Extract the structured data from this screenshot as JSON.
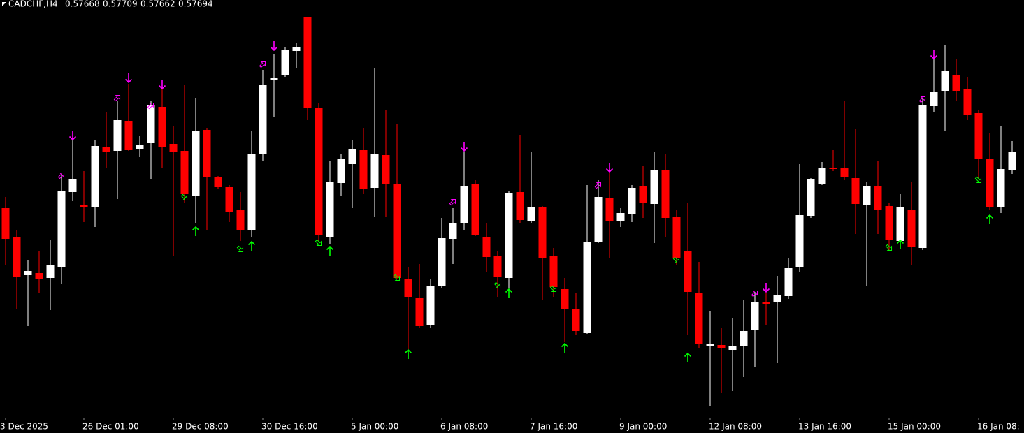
{
  "chart_data": {
    "type": "candlestick",
    "title": "CADCHF,H4",
    "bull_color": "#ffffff",
    "bear_color": "#ff0000",
    "axis_color": "#8c8c8c",
    "ylim": [
      0.57313,
      0.57911
    ],
    "categories": [
      "3 Dec 2025",
      null,
      null,
      null,
      null,
      null,
      null,
      "26 Dec 01:00",
      null,
      null,
      null,
      null,
      null,
      null,
      null,
      "29 Dec 08:00",
      null,
      null,
      null,
      null,
      null,
      null,
      null,
      "30 Dec 16:00",
      null,
      null,
      null,
      null,
      null,
      null,
      null,
      "5 Jan 00:00",
      null,
      null,
      null,
      null,
      null,
      null,
      null,
      "6 Jan 08:00",
      null,
      null,
      null,
      null,
      null,
      null,
      null,
      "7 Jan 16:00",
      null,
      null,
      null,
      null,
      null,
      null,
      null,
      "9 Jan 00:00",
      null,
      null,
      null,
      null,
      null,
      null,
      null,
      "12 Jan 08:00",
      null,
      null,
      null,
      null,
      null,
      null,
      null,
      "13 Jan 16:00",
      null,
      null,
      null,
      null,
      null,
      null,
      null,
      "15 Jan 00:00",
      null,
      null,
      null,
      null,
      null,
      null,
      null,
      "16 Jan 08:",
      null,
      null,
      null
    ],
    "ohlc": [
      [
        0.57613,
        0.57629,
        0.57531,
        0.57569
      ],
      [
        0.57571,
        0.57581,
        0.57468,
        0.57514
      ],
      [
        0.57517,
        0.57539,
        0.57444,
        0.57523
      ],
      [
        0.5752,
        0.57551,
        0.57491,
        0.57512
      ],
      [
        0.57513,
        0.57568,
        0.57467,
        0.57531
      ],
      [
        0.57528,
        0.57661,
        0.57504,
        0.57638
      ],
      [
        0.57636,
        0.57711,
        0.57623,
        0.57655
      ],
      [
        0.57618,
        0.57666,
        0.57593,
        0.57614
      ],
      [
        0.57614,
        0.57711,
        0.57586,
        0.57702
      ],
      [
        0.57701,
        0.57751,
        0.57671,
        0.57693
      ],
      [
        0.57695,
        0.57766,
        0.57626,
        0.57739
      ],
      [
        0.57738,
        0.57791,
        0.57695,
        0.57696
      ],
      [
        0.57697,
        0.57716,
        0.57686,
        0.57703
      ],
      [
        0.57706,
        0.57766,
        0.57655,
        0.57761
      ],
      [
        0.57758,
        0.57783,
        0.57671,
        0.57701
      ],
      [
        0.57705,
        0.57731,
        0.57544,
        0.57693
      ],
      [
        0.57695,
        0.57789,
        0.57621,
        0.57633
      ],
      [
        0.57631,
        0.57771,
        0.57591,
        0.57724
      ],
      [
        0.57725,
        0.57728,
        0.57581,
        0.57657
      ],
      [
        0.57657,
        0.57659,
        0.57641,
        0.57643
      ],
      [
        0.57643,
        0.57646,
        0.57593,
        0.57607
      ],
      [
        0.57611,
        0.57636,
        0.57566,
        0.57581
      ],
      [
        0.57582,
        0.57723,
        0.57571,
        0.5769
      ],
      [
        0.57691,
        0.57811,
        0.57681,
        0.5779
      ],
      [
        0.57796,
        0.57833,
        0.57743,
        0.578
      ],
      [
        0.57803,
        0.57843,
        0.57801,
        0.57839
      ],
      [
        0.57838,
        0.57849,
        0.57814,
        0.57843
      ],
      [
        0.57886,
        0.57886,
        0.57739,
        0.57756
      ],
      [
        0.57757,
        0.57763,
        0.57566,
        0.57574
      ],
      [
        0.57571,
        0.57681,
        0.57561,
        0.57651
      ],
      [
        0.57649,
        0.57691,
        0.57631,
        0.57683
      ],
      [
        0.57676,
        0.57711,
        0.57613,
        0.57697
      ],
      [
        0.57696,
        0.57728,
        0.57633,
        0.57641
      ],
      [
        0.57642,
        0.57814,
        0.57601,
        0.5769
      ],
      [
        0.57689,
        0.57754,
        0.57601,
        0.57648
      ],
      [
        0.57648,
        0.57733,
        0.57511,
        0.57513
      ],
      [
        0.57511,
        0.57528,
        0.57411,
        0.57486
      ],
      [
        0.57485,
        0.57533,
        0.57441,
        0.57444
      ],
      [
        0.57445,
        0.57511,
        0.57441,
        0.57502
      ],
      [
        0.57501,
        0.57599,
        0.57499,
        0.5757
      ],
      [
        0.57569,
        0.57613,
        0.57533,
        0.57592
      ],
      [
        0.57592,
        0.57696,
        0.57581,
        0.57645
      ],
      [
        0.57647,
        0.57653,
        0.57573,
        0.57574
      ],
      [
        0.57571,
        0.57591,
        0.57521,
        0.57543
      ],
      [
        0.57545,
        0.57551,
        0.57486,
        0.57514
      ],
      [
        0.57513,
        0.57638,
        0.57496,
        0.57635
      ],
      [
        0.57636,
        0.57718,
        0.57591,
        0.57596
      ],
      [
        0.57594,
        0.57693,
        0.57591,
        0.57614
      ],
      [
        0.57615,
        0.57616,
        0.57481,
        0.57541
      ],
      [
        0.57544,
        0.57556,
        0.57486,
        0.575
      ],
      [
        0.57497,
        0.57513,
        0.57421,
        0.57469
      ],
      [
        0.57468,
        0.57491,
        0.57431,
        0.57437
      ],
      [
        0.57434,
        0.57646,
        0.57433,
        0.57565
      ],
      [
        0.57564,
        0.57653,
        0.57563,
        0.57629
      ],
      [
        0.57628,
        0.57663,
        0.57541,
        0.57595
      ],
      [
        0.57594,
        0.57613,
        0.57586,
        0.57606
      ],
      [
        0.57605,
        0.57646,
        0.57593,
        0.57642
      ],
      [
        0.57644,
        0.57674,
        0.57599,
        0.57621
      ],
      [
        0.57619,
        0.57693,
        0.57563,
        0.57668
      ],
      [
        0.57667,
        0.57691,
        0.57571,
        0.57599
      ],
      [
        0.576,
        0.57611,
        0.57531,
        0.57541
      ],
      [
        0.57552,
        0.57621,
        0.57431,
        0.57493
      ],
      [
        0.57492,
        0.57536,
        0.57413,
        0.57418
      ],
      [
        0.57416,
        0.57466,
        0.57329,
        0.57418
      ],
      [
        0.57417,
        0.57441,
        0.57348,
        0.57412
      ],
      [
        0.5741,
        0.57456,
        0.57351,
        0.57416
      ],
      [
        0.57416,
        0.57481,
        0.57371,
        0.57437
      ],
      [
        0.57438,
        0.57493,
        0.57386,
        0.57478
      ],
      [
        0.57479,
        0.57491,
        0.57446,
        0.57476
      ],
      [
        0.57478,
        0.57516,
        0.57391,
        0.57489
      ],
      [
        0.57487,
        0.57541,
        0.57483,
        0.57527
      ],
      [
        0.57528,
        0.57676,
        0.57521,
        0.57603
      ],
      [
        0.57602,
        0.57656,
        0.57599,
        0.57654
      ],
      [
        0.57648,
        0.57679,
        0.57646,
        0.57671
      ],
      [
        0.57671,
        0.57696,
        0.57666,
        0.57669
      ],
      [
        0.5767,
        0.57766,
        0.57653,
        0.57657
      ],
      [
        0.57656,
        0.57726,
        0.57576,
        0.57619
      ],
      [
        0.57618,
        0.57651,
        0.57501,
        0.57645
      ],
      [
        0.57644,
        0.57681,
        0.57576,
        0.57611
      ],
      [
        0.57616,
        0.57621,
        0.57553,
        0.57567
      ],
      [
        0.57566,
        0.57633,
        0.57561,
        0.57615
      ],
      [
        0.57611,
        0.57651,
        0.57531,
        0.57557
      ],
      [
        0.57556,
        0.57771,
        0.57553,
        0.57761
      ],
      [
        0.57759,
        0.57831,
        0.57751,
        0.57779
      ],
      [
        0.5778,
        0.57846,
        0.57723,
        0.57809
      ],
      [
        0.57803,
        0.57826,
        0.57766,
        0.57781
      ],
      [
        0.57783,
        0.57801,
        0.57739,
        0.57747
      ],
      [
        0.57749,
        0.57753,
        0.57656,
        0.57683
      ],
      [
        0.57684,
        0.57721,
        0.57611,
        0.57615
      ],
      [
        0.57615,
        0.57731,
        0.57606,
        0.57669
      ],
      [
        0.57668,
        0.57709,
        0.57662,
        0.57694
      ]
    ],
    "signals": [
      {
        "color": "#ff00ff",
        "shape": "arrow-down",
        "values": [
          null,
          null,
          null,
          null,
          null,
          null,
          0.57717,
          null,
          null,
          null,
          null,
          0.57799,
          null,
          null,
          0.5779,
          null,
          null,
          null,
          null,
          null,
          null,
          null,
          null,
          null,
          0.57845,
          null,
          null,
          null,
          null,
          null,
          null,
          null,
          null,
          null,
          null,
          null,
          null,
          null,
          null,
          null,
          null,
          0.57701,
          null,
          null,
          null,
          null,
          null,
          null,
          null,
          null,
          null,
          null,
          null,
          null,
          0.57671,
          null,
          null,
          null,
          null,
          null,
          null,
          null,
          null,
          null,
          null,
          null,
          null,
          null,
          0.57499,
          null,
          null,
          null,
          null,
          null,
          null,
          null,
          null,
          null,
          null,
          null,
          null,
          null,
          null,
          0.57833,
          null,
          null,
          null,
          null,
          null,
          null,
          null
        ]
      },
      {
        "color": "#00ff00",
        "shape": "arrow-up",
        "values": [
          null,
          null,
          null,
          null,
          null,
          null,
          null,
          null,
          null,
          null,
          null,
          null,
          null,
          null,
          null,
          null,
          null,
          0.5758,
          null,
          null,
          null,
          null,
          0.57559,
          null,
          null,
          null,
          null,
          null,
          null,
          0.57552,
          null,
          null,
          null,
          null,
          null,
          null,
          0.57404,
          null,
          null,
          null,
          null,
          null,
          null,
          null,
          null,
          0.57491,
          null,
          null,
          null,
          null,
          0.57413,
          null,
          null,
          null,
          null,
          null,
          null,
          null,
          null,
          null,
          null,
          0.57399,
          null,
          null,
          null,
          null,
          null,
          null,
          null,
          null,
          null,
          null,
          null,
          null,
          null,
          null,
          null,
          null,
          null,
          null,
          0.57561,
          null,
          null,
          null,
          null,
          null,
          null,
          null,
          0.57597,
          null,
          null
        ]
      },
      {
        "color": "#ff00ff",
        "shape": "hollow-up",
        "values": [
          null,
          null,
          null,
          null,
          null,
          0.5766,
          null,
          null,
          null,
          null,
          0.57771,
          null,
          null,
          0.5776,
          null,
          null,
          null,
          null,
          null,
          null,
          null,
          null,
          null,
          0.57819,
          null,
          null,
          null,
          null,
          null,
          null,
          null,
          null,
          null,
          null,
          null,
          null,
          null,
          null,
          null,
          null,
          0.57622,
          null,
          null,
          null,
          null,
          null,
          null,
          null,
          null,
          null,
          null,
          null,
          null,
          0.57646,
          null,
          null,
          null,
          null,
          null,
          null,
          null,
          null,
          null,
          null,
          null,
          null,
          null,
          0.57491,
          null,
          null,
          null,
          null,
          null,
          null,
          null,
          null,
          null,
          null,
          null,
          null,
          null,
          null,
          0.57769,
          null,
          null,
          null,
          null,
          null,
          null,
          null,
          null
        ]
      },
      {
        "color": "#00ff00",
        "shape": "hollow-down",
        "values": [
          null,
          null,
          null,
          null,
          null,
          null,
          null,
          null,
          null,
          null,
          null,
          null,
          null,
          null,
          null,
          null,
          0.57628,
          null,
          null,
          null,
          null,
          0.57554,
          null,
          null,
          null,
          null,
          null,
          null,
          0.57563,
          null,
          null,
          null,
          null,
          null,
          null,
          0.57513,
          null,
          null,
          null,
          null,
          null,
          null,
          null,
          null,
          0.57502,
          null,
          null,
          null,
          null,
          0.57497,
          null,
          null,
          null,
          null,
          null,
          null,
          null,
          null,
          null,
          null,
          0.57538,
          null,
          null,
          null,
          null,
          null,
          null,
          null,
          null,
          null,
          null,
          null,
          null,
          null,
          null,
          null,
          null,
          null,
          null,
          0.57556,
          null,
          null,
          null,
          null,
          null,
          null,
          null,
          0.57653,
          null,
          null,
          null
        ]
      }
    ]
  }
}
